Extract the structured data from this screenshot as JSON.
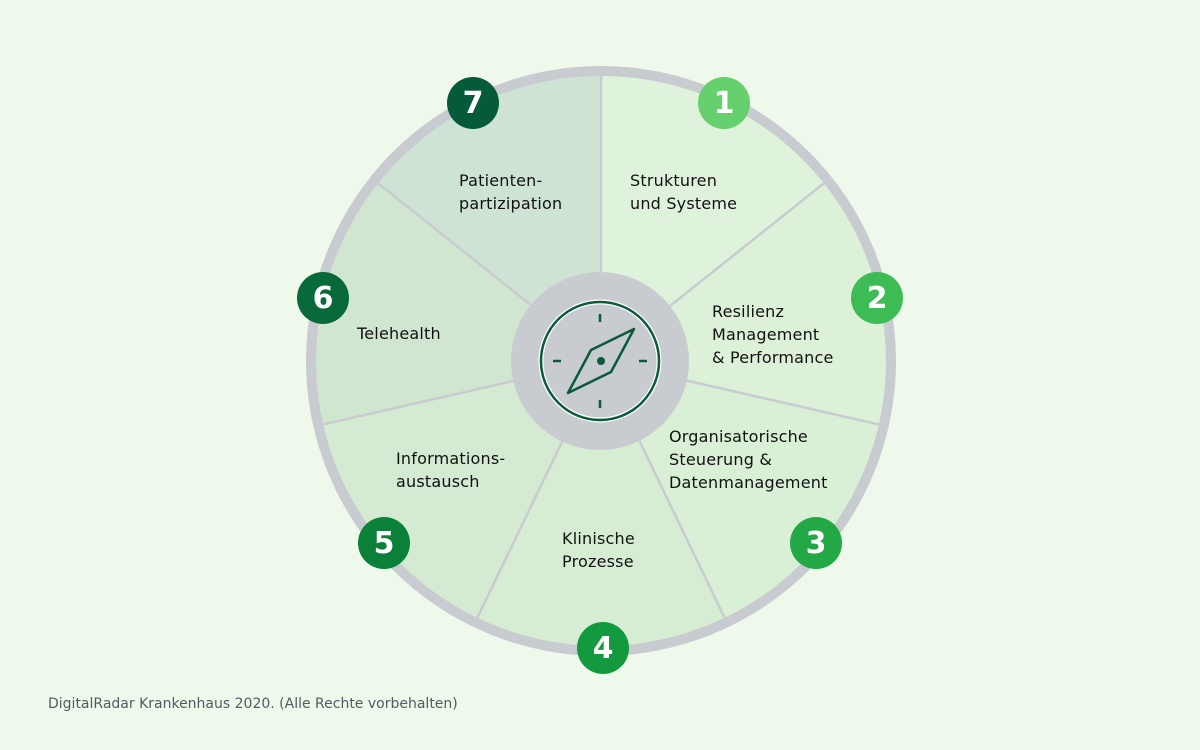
{
  "segments": [
    {
      "number": "1",
      "label_lines": [
        "Strukturen",
        "und Systeme"
      ],
      "fill": "#dff3dc",
      "badge_color": "#66cf6e"
    },
    {
      "number": "2",
      "label_lines": [
        "Resilienz",
        "Management",
        "& Performance"
      ],
      "fill": "#dcf1d8",
      "badge_color": "#3dbb55"
    },
    {
      "number": "3",
      "label_lines": [
        "Organisatorische",
        "Steuerung &",
        "Datenmanagement"
      ],
      "fill": "#d9efd6",
      "badge_color": "#22a845"
    },
    {
      "number": "4",
      "label_lines": [
        "Klinische",
        "Prozesse"
      ],
      "fill": "#d6edd3",
      "badge_color": "#139a3e"
    },
    {
      "number": "5",
      "label_lines": [
        "Informations-",
        "austausch"
      ],
      "fill": "#d4ead2",
      "badge_color": "#0b8039"
    },
    {
      "number": "6",
      "label_lines": [
        "Telehealth"
      ],
      "fill": "#d1e6d1",
      "badge_color": "#08693a"
    },
    {
      "number": "7",
      "label_lines": [
        "Patienten-",
        "partizipation"
      ],
      "fill": "#cfe3d4",
      "badge_color": "#055a3a"
    }
  ],
  "center_icon": "compass-icon",
  "colors": {
    "background": "#eef9ec",
    "ring": "#c8cbcf",
    "icon": "#0b5a3a"
  },
  "footer": "DigitalRadar Krankenhaus 2020. (Alle Rechte vorbehalten)"
}
